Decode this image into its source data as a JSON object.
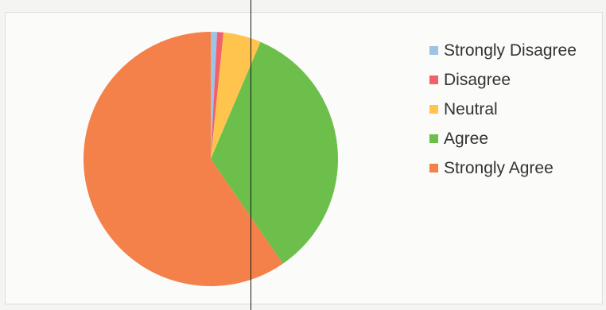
{
  "chart_data": {
    "type": "pie",
    "title": "",
    "categories": [
      "Strongly Disagree",
      "Disagree",
      "Neutral",
      "Agree",
      "Strongly Agree"
    ],
    "values": [
      0.8,
      0.8,
      4.8,
      34.0,
      59.6
    ],
    "unit": "percent (estimated)",
    "colors": [
      "#9dc3e6",
      "#f4606a",
      "#ffc44d",
      "#6cbf4a",
      "#f4804a"
    ],
    "start_angle": "12 o'clock",
    "direction": "clockwise",
    "legend_position": "right",
    "data_labels": false
  }
}
